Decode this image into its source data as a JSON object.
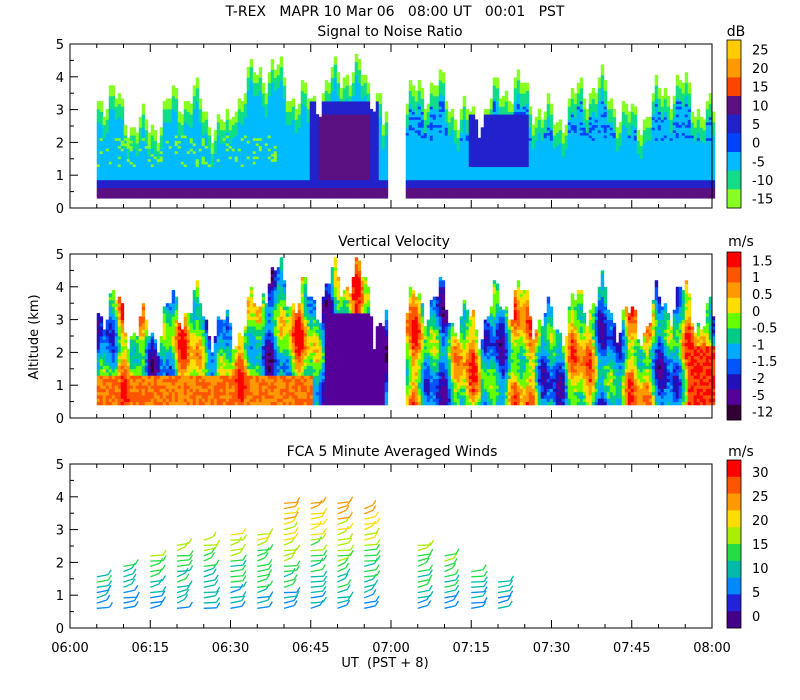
{
  "figure_title": "T-REX   MAPR 10 Mar 06   08:00 UT   00:01   PST",
  "chart_data": [
    {
      "type": "heatmap",
      "title": "Signal to Noise Ratio",
      "ylabel": "",
      "ylim": [
        0,
        5
      ],
      "yticks": [
        "0",
        "1",
        "2",
        "3",
        "4",
        "5"
      ],
      "xlim": [
        "06:00",
        "08:00"
      ],
      "data_gap": [
        "06:59",
        "07:01"
      ],
      "colorbar": {
        "unit": "dB",
        "labels": [
          "25",
          "20",
          "15",
          "10",
          "5",
          "0",
          "-5",
          "-10",
          "-15"
        ],
        "colors": [
          "#ffcc00",
          "#ff9900",
          "#ff4400",
          "#5a1080",
          "#2222cc",
          "#0044ff",
          "#00bbff",
          "#11dd88",
          "#88ff22"
        ]
      }
    },
    {
      "type": "heatmap",
      "title": "Vertical Velocity",
      "ylabel": "Altitude (km)",
      "ylim": [
        0,
        5
      ],
      "yticks": [
        "0",
        "1",
        "2",
        "3",
        "4",
        "5"
      ],
      "xlim": [
        "06:00",
        "08:00"
      ],
      "data_gap": [
        "06:59",
        "07:01"
      ],
      "colorbar": {
        "unit": "m/s",
        "labels": [
          "1.5",
          "1",
          "0.5",
          "0",
          "-0.5",
          "-1",
          "-1.5",
          "-2",
          "-5",
          "-12"
        ],
        "colors": [
          "#ff0000",
          "#ff5500",
          "#ff9900",
          "#ffdd00",
          "#66ff00",
          "#00cc88",
          "#00aaff",
          "#0055ff",
          "#2211bb",
          "#550099",
          "#330033"
        ]
      }
    },
    {
      "type": "scatter",
      "title": "FCA 5 Minute Averaged Winds",
      "ylabel": "",
      "ylim": [
        0,
        5
      ],
      "yticks": [
        "0",
        "1",
        "2",
        "3",
        "4",
        "5"
      ],
      "xlim": [
        "06:00",
        "08:00"
      ],
      "colorbar": {
        "unit": "m/s",
        "labels": [
          "30",
          "25",
          "20",
          "15",
          "10",
          "5",
          "0"
        ],
        "colors": [
          "#ff0000",
          "#ff5500",
          "#ff9900",
          "#ffdd00",
          "#aaee00",
          "#22dd44",
          "#00bbaa",
          "#0088ff",
          "#2222dd",
          "#440088"
        ]
      }
    }
  ],
  "x_axis": {
    "label": "UT  (PST + 8)",
    "ticks": [
      "06:00",
      "06:15",
      "06:30",
      "06:45",
      "07:00",
      "07:15",
      "07:30",
      "07:45",
      "08:00"
    ]
  }
}
